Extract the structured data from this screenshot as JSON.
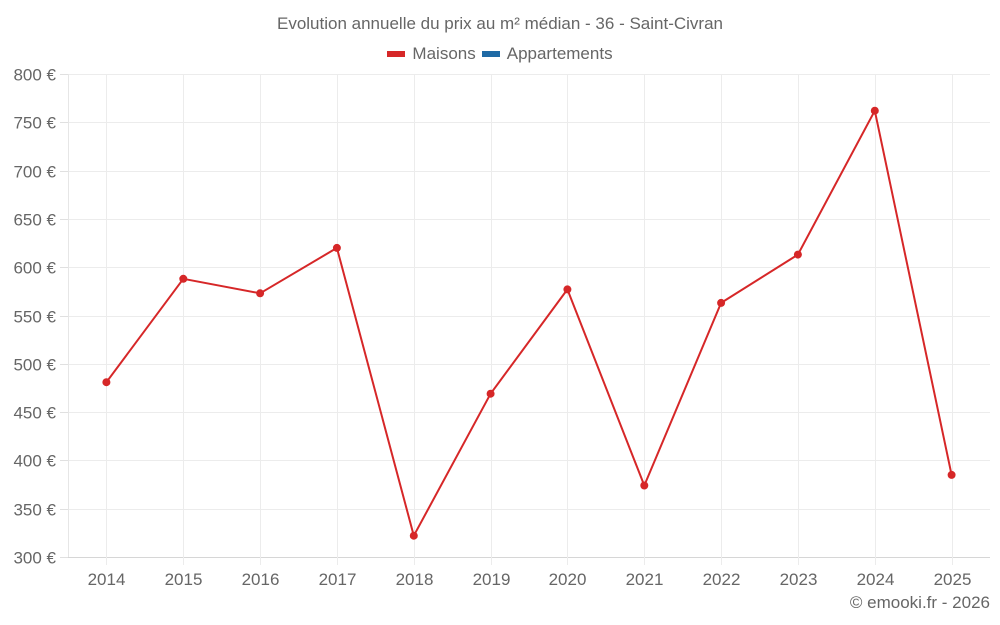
{
  "chart": {
    "title": "Evolution annuelle du prix au m² médian - 36 - Saint-Civran",
    "credit": "© emooki.fr - 2026",
    "legend": [
      {
        "label": "Maisons",
        "color": "#d62728"
      },
      {
        "label": "Appartements",
        "color": "#1f6aa5"
      }
    ]
  },
  "chart_data": {
    "type": "line",
    "title": "Evolution annuelle du prix au m² médian - 36 - Saint-Civran",
    "xlabel": "",
    "ylabel": "",
    "categories": [
      "2014",
      "2015",
      "2016",
      "2017",
      "2018",
      "2019",
      "2020",
      "2021",
      "2022",
      "2023",
      "2024",
      "2025"
    ],
    "series": [
      {
        "name": "Maisons",
        "color": "#d62728",
        "values": [
          481,
          588,
          573,
          620,
          322,
          469,
          577,
          374,
          563,
          613,
          762,
          385
        ]
      },
      {
        "name": "Appartements",
        "color": "#1f6aa5",
        "values": []
      }
    ],
    "ylim": [
      300,
      800
    ],
    "yticks": [
      300,
      350,
      400,
      450,
      500,
      550,
      600,
      650,
      700,
      750,
      800
    ],
    "ytick_labels": [
      "300 €",
      "350 €",
      "400 €",
      "450 €",
      "500 €",
      "550 €",
      "600 €",
      "650 €",
      "700 €",
      "750 €",
      "800 €"
    ],
    "grid": true,
    "legend_position": "top"
  }
}
